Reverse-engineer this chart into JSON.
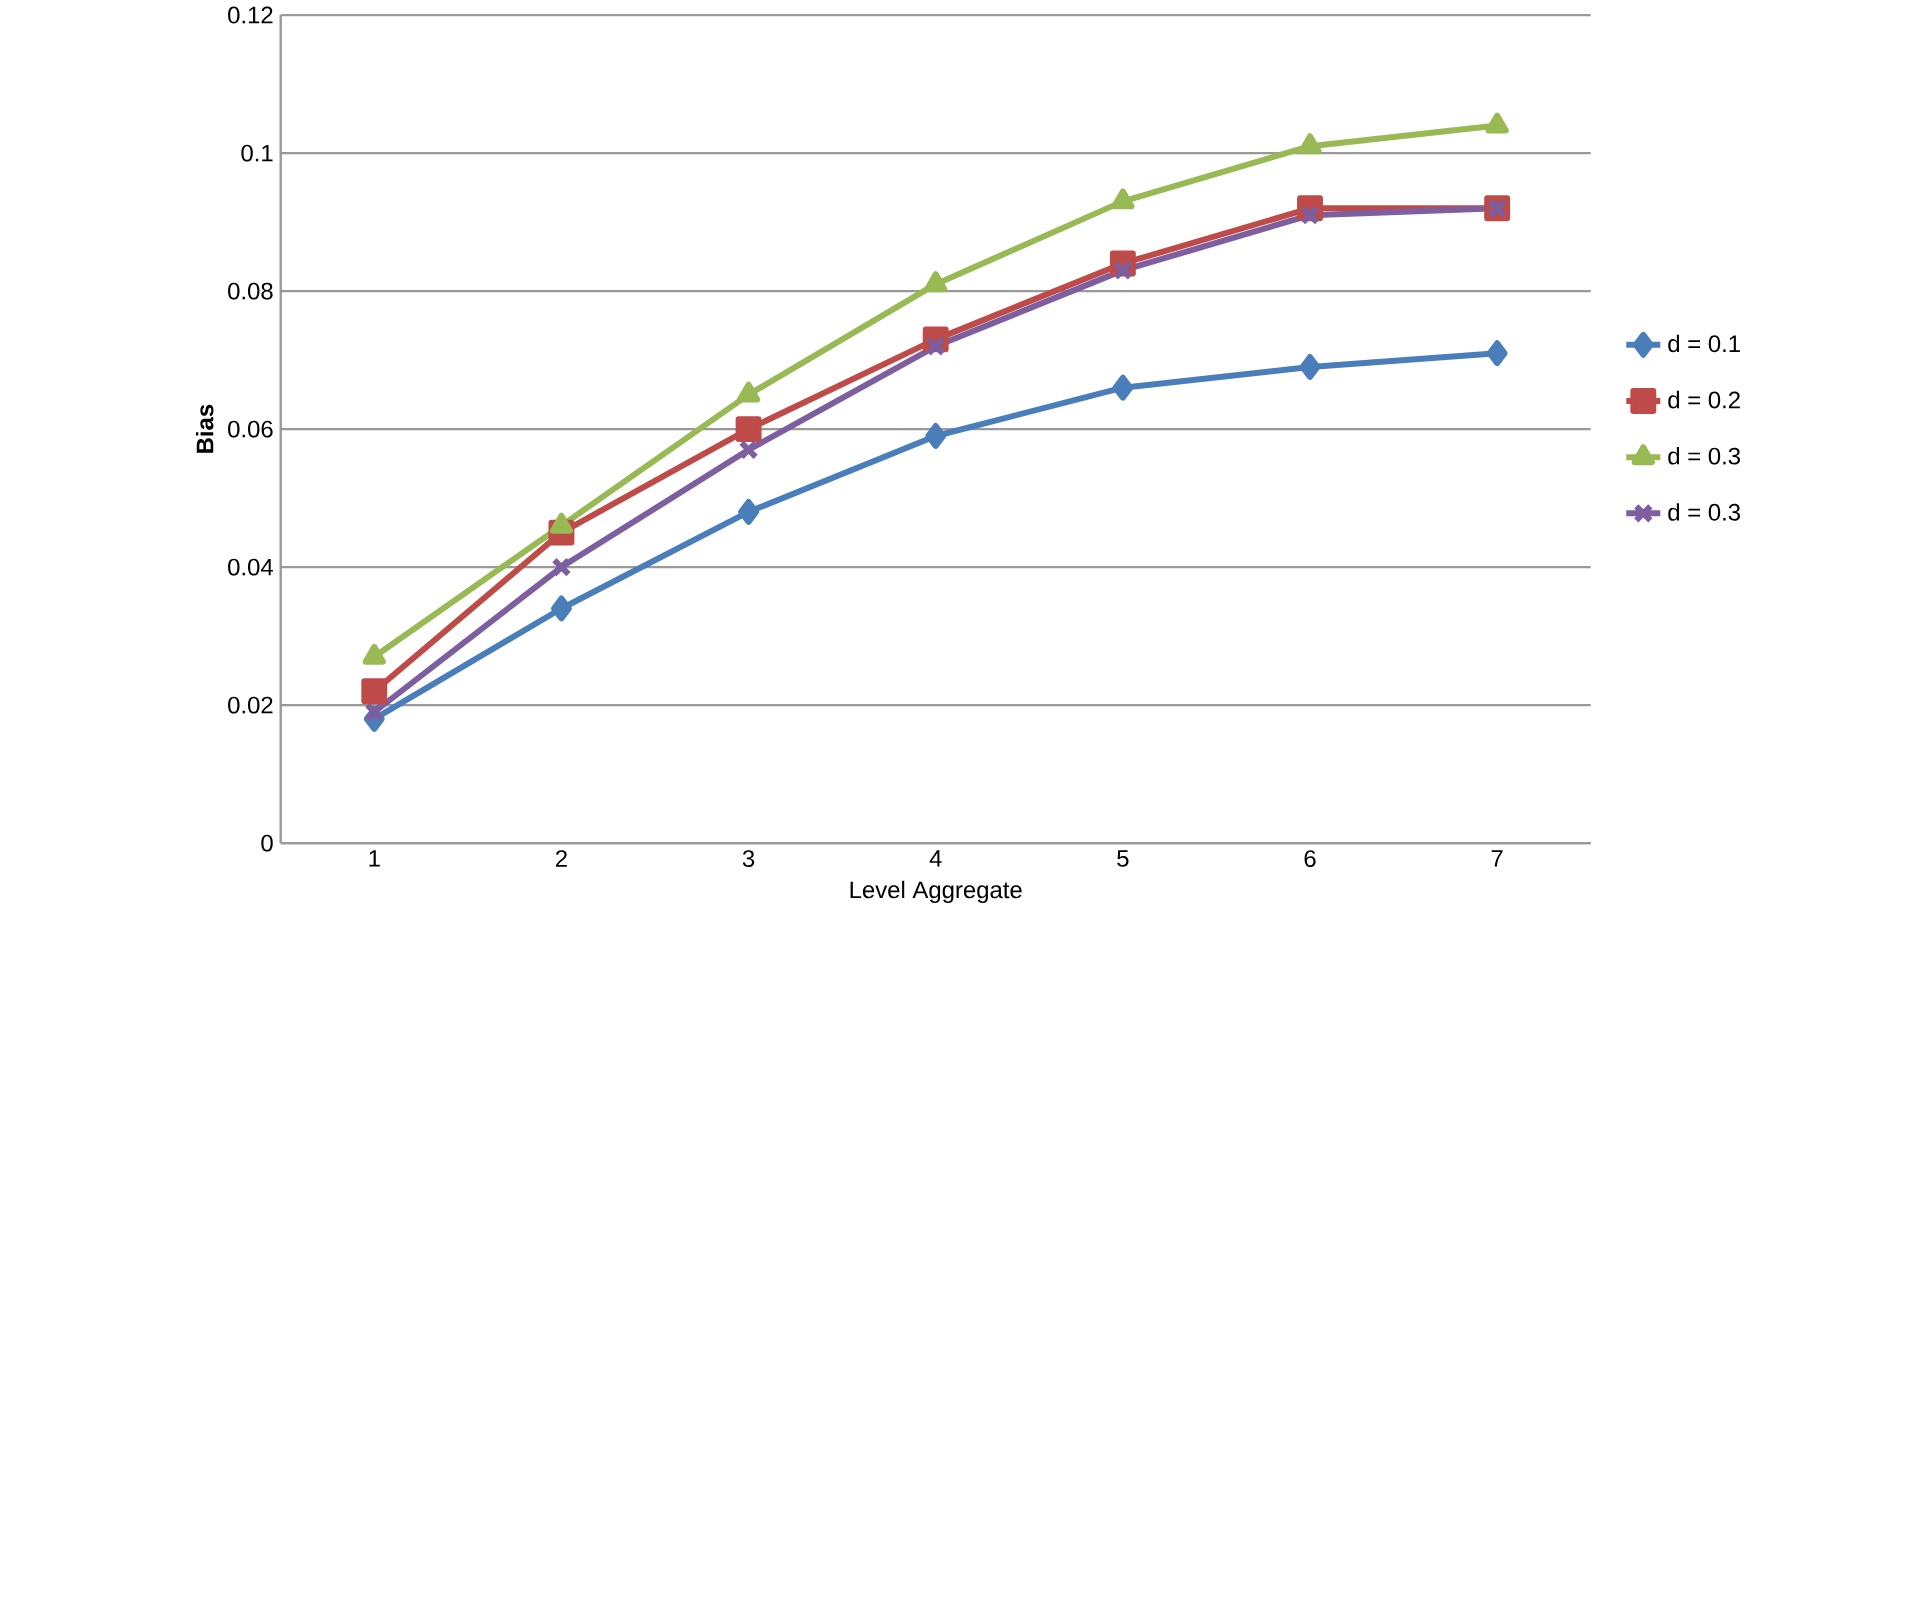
{
  "chart_data": {
    "type": "line",
    "xlabel": "Level Aggregate",
    "ylabel": "Bias",
    "categories": [
      "1",
      "2",
      "3",
      "4",
      "5",
      "6",
      "7"
    ],
    "series": [
      {
        "name": "d = 0.1",
        "color": "#4a7ebb",
        "marker": "diamond",
        "values": [
          0.018,
          0.034,
          0.048,
          0.059,
          0.066,
          0.069,
          0.071
        ]
      },
      {
        "name": "d = 0.2",
        "color": "#be4b48",
        "marker": "square",
        "values": [
          0.022,
          0.045,
          0.06,
          0.073,
          0.084,
          0.092,
          0.092
        ]
      },
      {
        "name": "d = 0.3",
        "color": "#98b954",
        "marker": "triangle",
        "values": [
          0.027,
          0.046,
          0.065,
          0.081,
          0.093,
          0.101,
          0.104
        ]
      },
      {
        "name": "d = 0.3",
        "color": "#7d5fa0",
        "marker": "cross",
        "values": [
          0.019,
          0.04,
          0.057,
          0.072,
          0.083,
          0.091,
          0.092
        ]
      }
    ],
    "ylim": [
      0,
      0.12
    ],
    "yticks": [
      0,
      0.02,
      0.04,
      0.06,
      0.08,
      0.1,
      0.12
    ],
    "grid": "y",
    "legend": "right"
  }
}
